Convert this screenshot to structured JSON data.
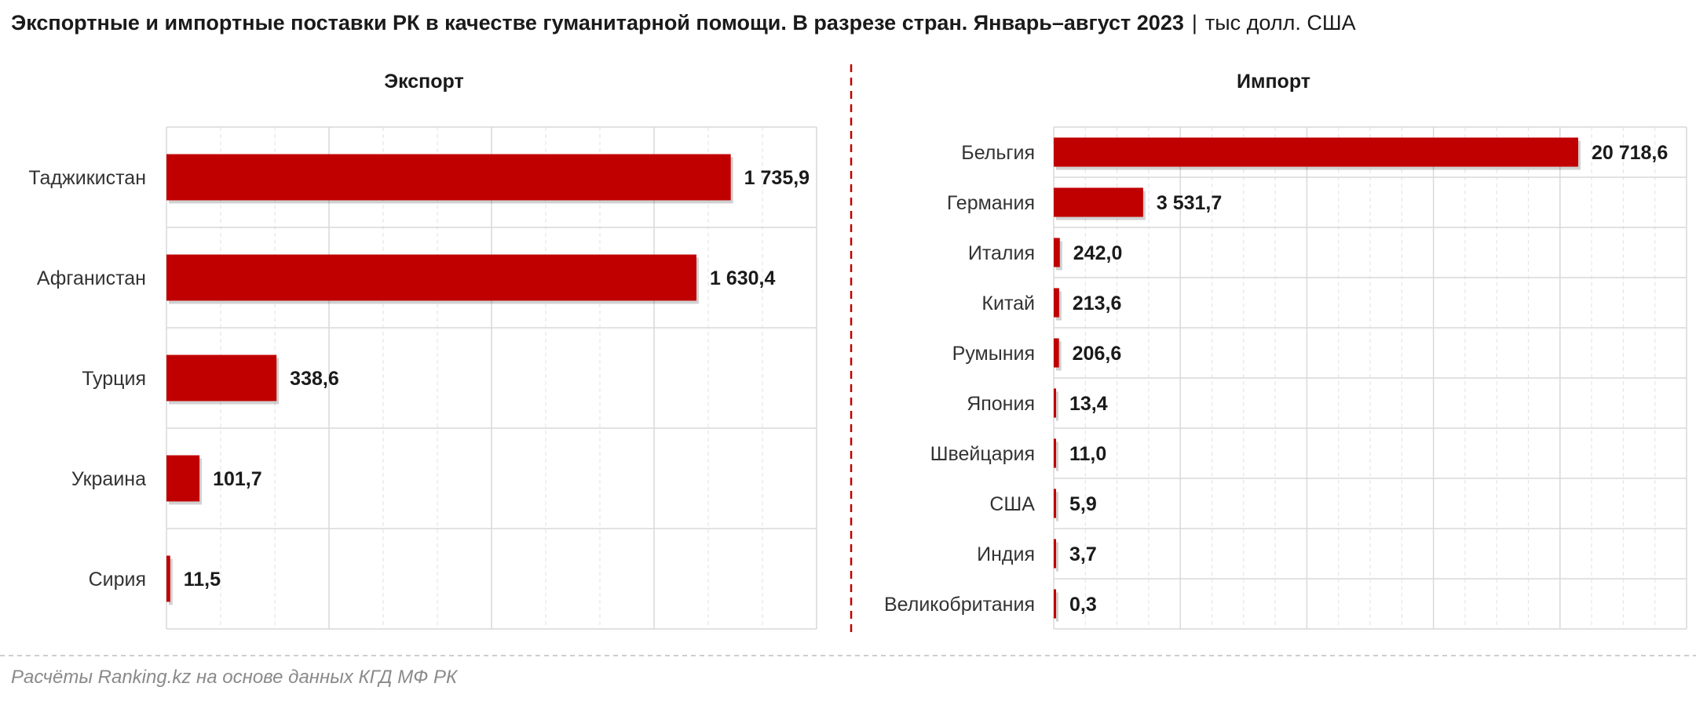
{
  "header": {
    "title": "Экспортные и импортные поставки РК в качестве гуманитарной помощи. В разрезе стран. Январь–август 2023",
    "separator": "|",
    "unit": "тыс долл. США"
  },
  "footer": {
    "source": "Расчёты Ranking.kz на основе данных КГД МФ РК"
  },
  "colors": {
    "bar": "#c00000",
    "divider": "#c00000",
    "grid": "#d9d9d9",
    "text": "#1a1a1a",
    "footer": "#8a8a8a"
  },
  "chart_data": [
    {
      "type": "bar",
      "orientation": "horizontal",
      "title": "Экспорт",
      "categories": [
        "Таджикистан",
        "Афганистан",
        "Турция",
        "Украина",
        "Сирия"
      ],
      "values": [
        1735.9,
        1630.4,
        338.6,
        101.7,
        11.5
      ],
      "value_labels": [
        "1 735,9",
        "1 630,4",
        "338,6",
        "101,7",
        "11,5"
      ],
      "xlim": [
        0,
        2000
      ],
      "grid": true,
      "legend": "none"
    },
    {
      "type": "bar",
      "orientation": "horizontal",
      "title": "Импорт",
      "categories": [
        "Бельгия",
        "Германия",
        "Италия",
        "Китай",
        "Румыния",
        "Япония",
        "Швейцария",
        "США",
        "Индия",
        "Великобритания"
      ],
      "values": [
        20718.6,
        3531.7,
        242.0,
        213.6,
        206.6,
        13.4,
        11.0,
        5.9,
        3.7,
        0.3
      ],
      "value_labels": [
        "20 718,6",
        "3 531,7",
        "242,0",
        "213,6",
        "206,6",
        "13,4",
        "11,0",
        "5,9",
        "3,7",
        "0,3"
      ],
      "xlim": [
        0,
        25000
      ],
      "grid": true,
      "legend": "none"
    }
  ]
}
